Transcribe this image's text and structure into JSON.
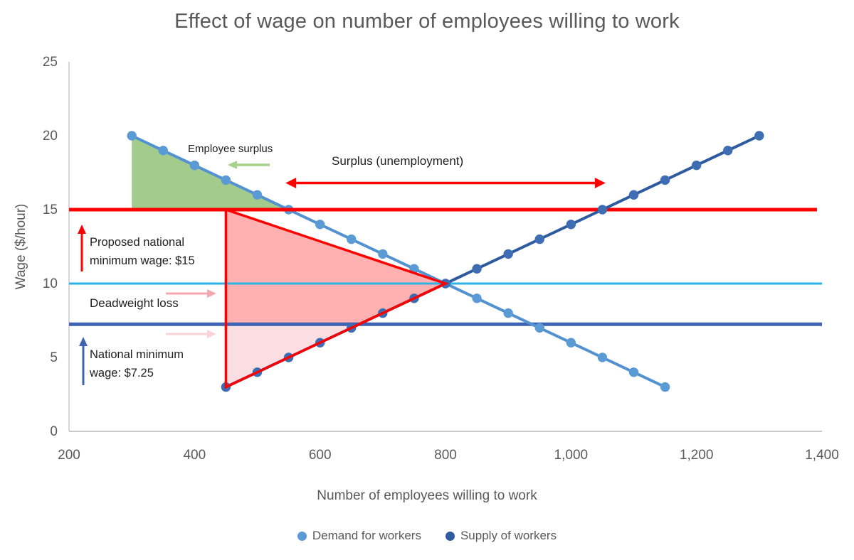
{
  "page": {
    "background": "#ffffff"
  },
  "chart_data": {
    "type": "line",
    "title": "Effect of wage on number of employees willing to work",
    "xlabel": "Number of employees willing to work",
    "ylabel": "Wage ($/hour)",
    "xlim": [
      200,
      1400
    ],
    "ylim": [
      0,
      25
    ],
    "grid": false,
    "legend_position": "bottom",
    "x_ticks": [
      {
        "value": 200,
        "label": "200"
      },
      {
        "value": 400,
        "label": "400"
      },
      {
        "value": 600,
        "label": "600"
      },
      {
        "value": 800,
        "label": "800"
      },
      {
        "value": 1000,
        "label": "1,000"
      },
      {
        "value": 1200,
        "label": "1,200"
      },
      {
        "value": 1400,
        "label": "1,400"
      }
    ],
    "y_ticks": [
      {
        "value": 0,
        "label": "0"
      },
      {
        "value": 5,
        "label": "5"
      },
      {
        "value": 10,
        "label": "10"
      },
      {
        "value": 15,
        "label": "15"
      },
      {
        "value": 20,
        "label": "20"
      },
      {
        "value": 25,
        "label": "25"
      }
    ],
    "series": [
      {
        "name": "Demand for workers",
        "color": "#5292d1",
        "marker_color": "#5b9bd5",
        "marker": "circle",
        "points": [
          [
            300,
            20
          ],
          [
            350,
            19
          ],
          [
            400,
            18
          ],
          [
            450,
            17
          ],
          [
            500,
            16
          ],
          [
            550,
            15
          ],
          [
            600,
            14
          ],
          [
            650,
            13
          ],
          [
            700,
            12
          ],
          [
            750,
            11
          ],
          [
            800,
            10
          ],
          [
            850,
            9
          ],
          [
            900,
            8
          ],
          [
            950,
            7
          ],
          [
            1000,
            6
          ],
          [
            1050,
            5
          ],
          [
            1100,
            4
          ],
          [
            1150,
            3
          ]
        ]
      },
      {
        "name": "Supply of workers",
        "color": "#2e5ba0",
        "marker_color": "#3f6db3",
        "marker": "circle",
        "points": [
          [
            450,
            3
          ],
          [
            500,
            4
          ],
          [
            550,
            5
          ],
          [
            600,
            6
          ],
          [
            650,
            7
          ],
          [
            700,
            8
          ],
          [
            750,
            9
          ],
          [
            800,
            10
          ],
          [
            850,
            11
          ],
          [
            900,
            12
          ],
          [
            950,
            13
          ],
          [
            1000,
            14
          ],
          [
            1050,
            15
          ],
          [
            1100,
            16
          ],
          [
            1150,
            17
          ],
          [
            1200,
            18
          ],
          [
            1250,
            19
          ],
          [
            1300,
            20
          ]
        ]
      }
    ],
    "reference_lines": [
      {
        "name": "equilibrium-wage-line",
        "y": 10,
        "color": "#29b3e8",
        "width": 3,
        "x_start": 200,
        "x_end": 1400
      },
      {
        "name": "national-minimum-wage-line",
        "y": 7.25,
        "color": "#3f63b2",
        "width": 5,
        "x_start": 200,
        "x_end": 1400
      },
      {
        "name": "proposed-minimum-wage-line",
        "y": 15,
        "color": "#ff0000",
        "width": 5,
        "x_start": 200,
        "x_end": 1392
      }
    ],
    "regions": [
      {
        "name": "employee-surplus-area",
        "fill": "#a3cb8b",
        "points": [
          [
            300,
            20
          ],
          [
            550,
            15
          ],
          [
            300,
            15
          ]
        ]
      },
      {
        "name": "deadweight-loss-upper-area",
        "fill": "#ffb0b0",
        "points": [
          [
            450,
            15
          ],
          [
            800,
            10
          ],
          [
            662.5,
            7.25
          ],
          [
            450,
            7.25
          ]
        ]
      },
      {
        "name": "deadweight-loss-lower-area",
        "fill": "#fbdee2",
        "points": [
          [
            450,
            7.25
          ],
          [
            662.5,
            7.25
          ],
          [
            450,
            3
          ]
        ]
      }
    ],
    "outline": {
      "name": "deadweight-loss-outline",
      "stroke": "#ff0000",
      "width": 3.5,
      "points": [
        [
          450,
          15
        ],
        [
          800,
          10
        ],
        [
          450,
          3
        ]
      ]
    },
    "annotations": {
      "employee_surplus": {
        "text": "Employee surplus",
        "arrow_color": "#a9d18e",
        "arrow_direction": "left"
      },
      "surplus_unemployment": {
        "text": "Surplus (unemployment)",
        "arrow_color": "#ff0000",
        "arrow_direction": "both",
        "arrow_span_x": [
          545,
          1055
        ],
        "arrow_y": 16.8
      },
      "proposed_min_wage": {
        "text": "Proposed national minimum wage: $15",
        "arrow_color": "#ff0000",
        "arrow_direction": "up"
      },
      "deadweight_loss": {
        "text": "Deadweight loss",
        "arrow_color": "#f5a7b1",
        "arrow_direction": "right"
      },
      "deadweight_loss_secondary_arrow": {
        "arrow_color": "#f9d3d8",
        "arrow_direction": "right"
      },
      "national_min_wage": {
        "text": "National minimum wage: $7.25",
        "arrow_color": "#3f63b2",
        "arrow_direction": "up"
      }
    },
    "legend": {
      "items": [
        {
          "label": "Demand for workers",
          "color": "#5b9bd5"
        },
        {
          "label": "Supply of workers",
          "color": "#2e5ba0"
        }
      ]
    },
    "axis_color": "#c9c9c9",
    "tick_label_color": "#595959"
  }
}
